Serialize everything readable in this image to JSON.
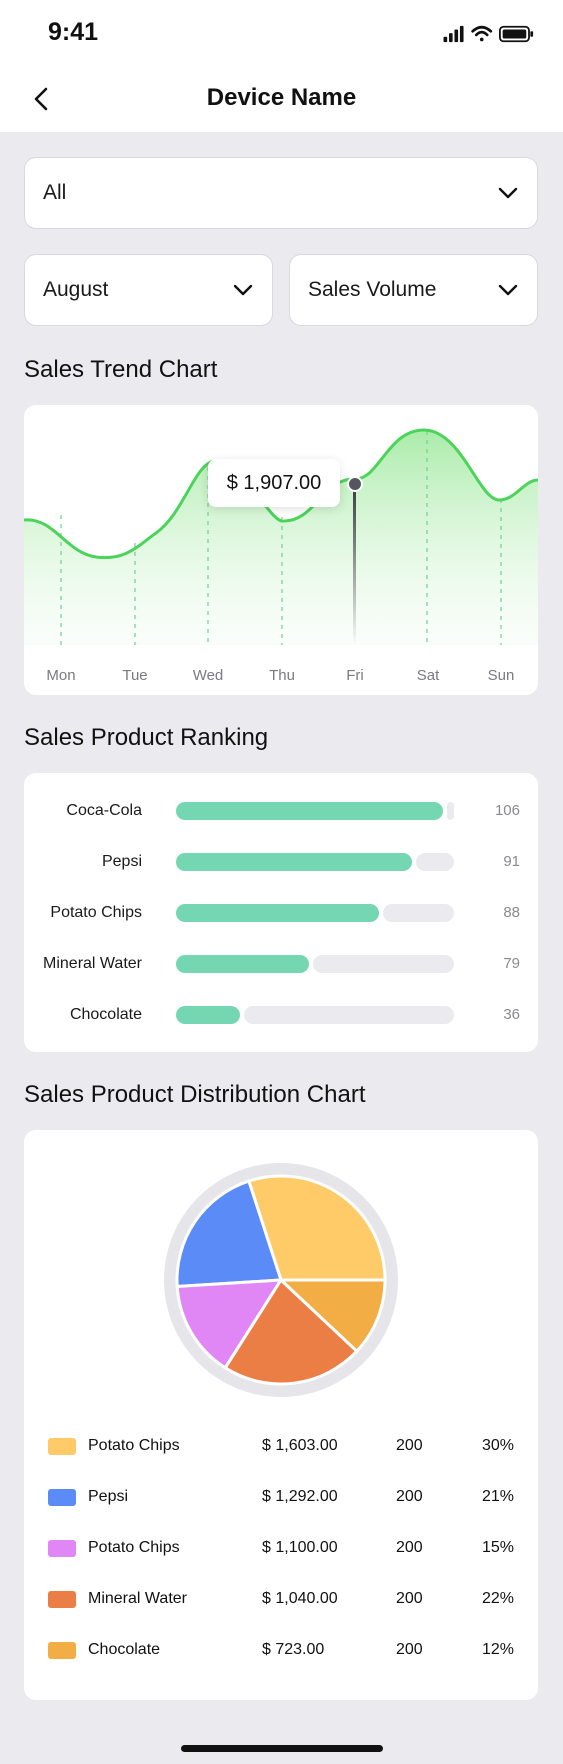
{
  "status": {
    "time": "9:41"
  },
  "nav": {
    "title": "Device Name"
  },
  "filters": {
    "device": "All",
    "month": "August",
    "metric": "Sales Volume"
  },
  "trend": {
    "title": "Sales Trend Chart",
    "tooltip": "$ 1,907.00",
    "highlighted_day": "Fri",
    "days": [
      "Mon",
      "Tue",
      "Wed",
      "Thu",
      "Fri",
      "Sat",
      "Sun"
    ],
    "line_color": "#4CD35A"
  },
  "ranking": {
    "title": "Sales Product Ranking",
    "items": [
      {
        "label": "Coca-Cola",
        "value": "106",
        "fill": 0.96
      },
      {
        "label": "Pepsi",
        "value": "91",
        "fill": 0.85
      },
      {
        "label": "Potato Chips",
        "value": "88",
        "fill": 0.73
      },
      {
        "label": "Mineral Water",
        "value": "79",
        "fill": 0.48
      },
      {
        "label": "Chocolate",
        "value": "36",
        "fill": 0.23
      }
    ],
    "bar_color": "#74D7B1"
  },
  "distribution": {
    "title": "Sales Product Distribution Chart",
    "items": [
      {
        "name": "Potato Chips",
        "amount": "$ 1,603.00",
        "qty": "200",
        "pct": "30%",
        "color": "#FFCB69"
      },
      {
        "name": "Pepsi",
        "amount": "$ 1,292.00",
        "qty": "200",
        "pct": "21%",
        "color": "#5B8BF7"
      },
      {
        "name": "Potato Chips",
        "amount": "$ 1,100.00",
        "qty": "200",
        "pct": "15%",
        "color": "#E187F5"
      },
      {
        "name": "Mineral Water",
        "amount": "$ 1,040.00",
        "qty": "200",
        "pct": "22%",
        "color": "#EA7E45"
      },
      {
        "name": "Chocolate",
        "amount": "$ 723.00",
        "qty": "200",
        "pct": "12%",
        "color": "#F2AE45"
      }
    ]
  },
  "chart_data": {
    "type": "pie",
    "categories": [
      "Potato Chips",
      "Pepsi",
      "Potato Chips",
      "Mineral Water",
      "Chocolate"
    ],
    "values": [
      30,
      21,
      15,
      22,
      12
    ],
    "title": "Sales Product Distribution Chart"
  }
}
